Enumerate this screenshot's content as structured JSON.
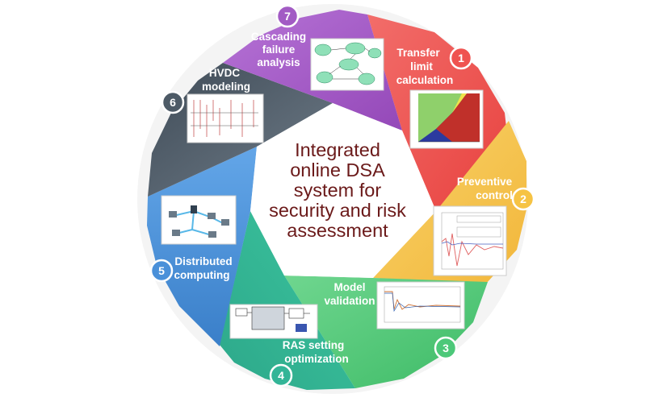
{
  "title_lines": [
    "Integrated",
    "online DSA",
    "system for",
    "security and risk",
    "assessment"
  ],
  "segments": [
    {
      "num": "1",
      "label_lines": [
        "Transfer",
        "limit",
        "calculation"
      ],
      "color": "#ef5350"
    },
    {
      "num": "2",
      "label_lines": [
        "Preventive",
        "control"
      ],
      "color": "#f6c344"
    },
    {
      "num": "3",
      "label_lines": [
        "Model",
        "validation"
      ],
      "color": "#4cc879"
    },
    {
      "num": "4",
      "label_lines": [
        "RAS setting",
        "optimization"
      ],
      "color": "#33b597"
    },
    {
      "num": "5",
      "label_lines": [
        "Distributed",
        "computing"
      ],
      "color": "#4a90d9"
    },
    {
      "num": "6",
      "label_lines": [
        "HVDC",
        "modeling"
      ],
      "color": "#4d5a66"
    },
    {
      "num": "7",
      "label_lines": [
        "Cascading",
        "failure",
        "analysis"
      ],
      "color": "#a25bc4"
    }
  ],
  "colors": {
    "title": "#6b1a1a",
    "ring_red": "#ef5350",
    "ring_yellow": "#f6c344",
    "ring_green": "#4cc879",
    "ring_teal": "#33b597",
    "ring_blue": "#4a90d9",
    "ring_slate": "#4d5a66",
    "ring_purple": "#a25bc4"
  },
  "thumbnail_icons": [
    "heatmap-plot-icon",
    "time-series-plot-icon",
    "model-validation-plot-icon",
    "block-diagram-icon",
    "computer-network-icon",
    "hvdc-schematic-icon",
    "cascade-flow-diagram-icon"
  ]
}
